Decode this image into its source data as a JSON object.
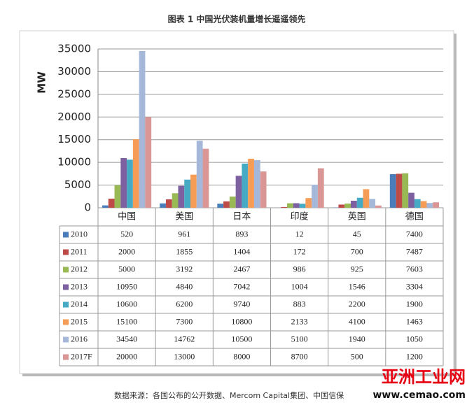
{
  "chart_data": {
    "type": "bar",
    "title": "图表 1 中国光伏装机量增长遥遥领先",
    "y_label": "MW",
    "categories": [
      "中国",
      "美国",
      "日本",
      "印度",
      "英国",
      "德国"
    ],
    "series": [
      {
        "name": "2010",
        "color": "#4a7ebb",
        "values": [
          520,
          961,
          893,
          12,
          45,
          7400
        ]
      },
      {
        "name": "2011",
        "color": "#be4b48",
        "values": [
          2000,
          1855,
          1404,
          172,
          700,
          7487
        ]
      },
      {
        "name": "2012",
        "color": "#98b954",
        "values": [
          5000,
          3192,
          2467,
          986,
          925,
          7603
        ]
      },
      {
        "name": "2013",
        "color": "#7d60a0",
        "values": [
          10950,
          4840,
          7042,
          1004,
          1546,
          3304
        ]
      },
      {
        "name": "2014",
        "color": "#46aac5",
        "values": [
          10600,
          6200,
          9740,
          883,
          2200,
          1900
        ]
      },
      {
        "name": "2015",
        "color": "#f59d56",
        "values": [
          15100,
          7300,
          10800,
          2133,
          4100,
          1463
        ]
      },
      {
        "name": "2016",
        "color": "#a5b8d9",
        "values": [
          34540,
          14762,
          10500,
          5100,
          1940,
          1050
        ]
      },
      {
        "name": "2017F",
        "color": "#d99694",
        "values": [
          20000,
          13000,
          8000,
          8700,
          500,
          1200
        ]
      }
    ],
    "ylim": [
      0,
      35000
    ],
    "yticks": [
      0,
      5000,
      10000,
      15000,
      20000,
      25000,
      30000,
      35000
    ],
    "grid": true
  },
  "source": "数据来源：各国公布的公开数据、Mercom Capital集团、中国信保",
  "watermark": {
    "name": "亚洲工业网",
    "url": "www.cemao.com"
  }
}
